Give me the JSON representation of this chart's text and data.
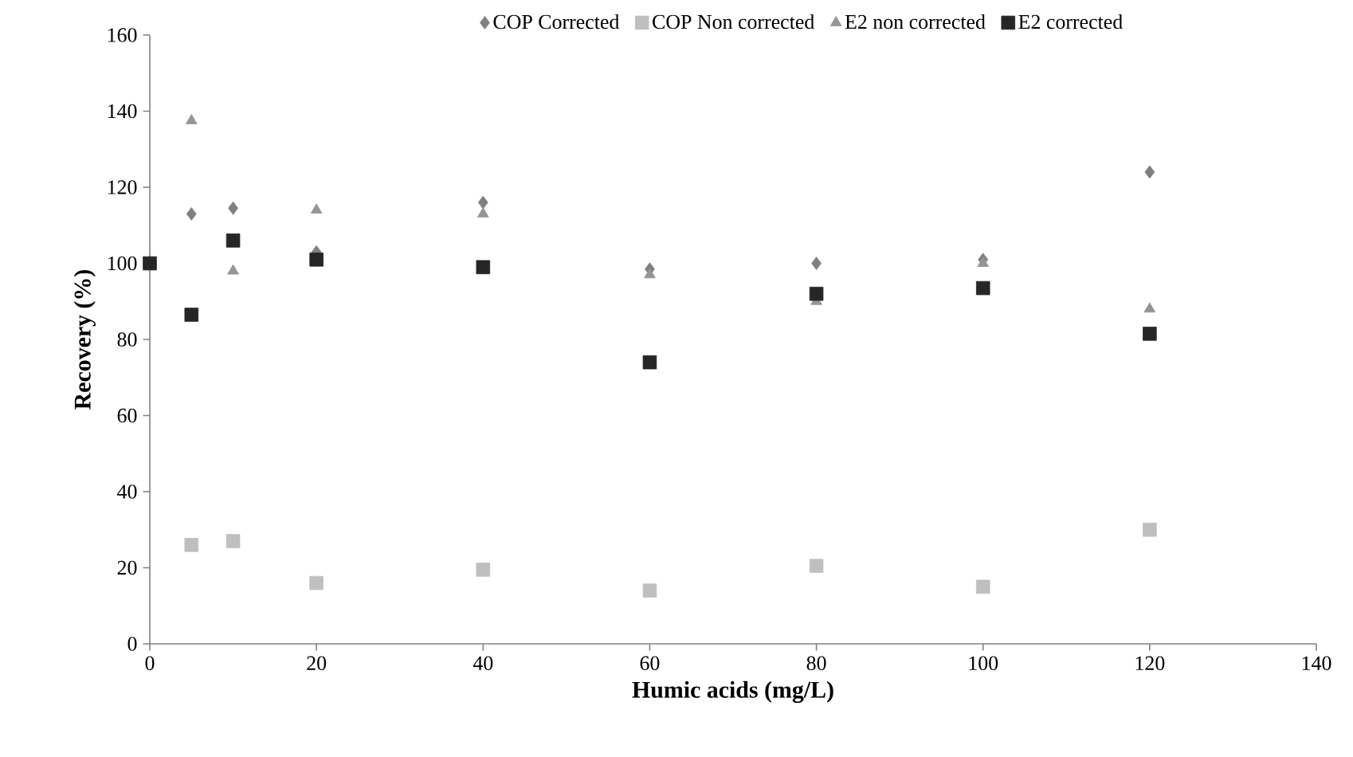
{
  "chart_data": {
    "type": "scatter",
    "xlabel": "Humic acids (mg/L)",
    "ylabel": "Recovery (%)",
    "xlim": [
      0,
      140
    ],
    "xticks": [
      0,
      20,
      40,
      60,
      80,
      100,
      120,
      140
    ],
    "ylim": [
      0,
      160
    ],
    "yticks": [
      0,
      20,
      40,
      60,
      80,
      100,
      120,
      140,
      160
    ],
    "grid": false,
    "legend": "top",
    "series": [
      {
        "name": "COP Corrected",
        "color": "#808080",
        "marker": "diamond",
        "x": [
          5,
          10,
          20,
          40,
          60,
          80,
          100,
          120
        ],
        "values": [
          113,
          114.5,
          103,
          116,
          98.5,
          100,
          101,
          124
        ]
      },
      {
        "name": "COP Non corrected",
        "color": "#bfbfbf",
        "marker": "square",
        "x": [
          5,
          10,
          20,
          40,
          60,
          80,
          100,
          120
        ],
        "values": [
          26,
          27,
          16,
          19.5,
          14,
          20.5,
          15,
          30
        ]
      },
      {
        "name": "E2 non corrected",
        "color": "#959595",
        "marker": "triangle",
        "x": [
          5,
          10,
          20,
          40,
          60,
          80,
          100,
          120
        ],
        "values": [
          137.5,
          98,
          114,
          113,
          97,
          90,
          100,
          88
        ]
      },
      {
        "name": "E2 corrected",
        "color": "#262626",
        "marker": "square",
        "x": [
          0,
          5,
          10,
          20,
          40,
          60,
          80,
          100,
          120
        ],
        "values": [
          100,
          86.5,
          106,
          101,
          99,
          74,
          92,
          93.5,
          81.5
        ]
      }
    ]
  }
}
